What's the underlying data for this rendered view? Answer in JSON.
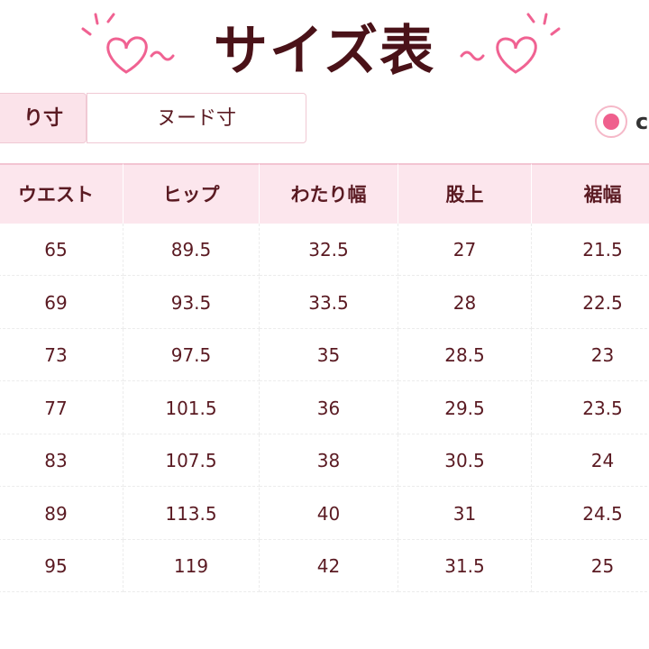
{
  "header": {
    "title": "サイズ表"
  },
  "tabs": [
    "り寸",
    "ヌード寸"
  ],
  "radio": {
    "label": "c"
  },
  "table": {
    "columns": [
      "ウエスト",
      "ヒップ",
      "わたり幅",
      "股上",
      "裾幅"
    ],
    "rows": [
      [
        "65",
        "89.5",
        "32.5",
        "27",
        "21.5"
      ],
      [
        "69",
        "93.5",
        "33.5",
        "28",
        "22.5"
      ],
      [
        "73",
        "97.5",
        "35",
        "28.5",
        "23"
      ],
      [
        "77",
        "101.5",
        "36",
        "29.5",
        "23.5"
      ],
      [
        "83",
        "107.5",
        "38",
        "30.5",
        "24"
      ],
      [
        "89",
        "113.5",
        "40",
        "31",
        "24.5"
      ],
      [
        "95",
        "119",
        "42",
        "31.5",
        "25"
      ]
    ]
  }
}
